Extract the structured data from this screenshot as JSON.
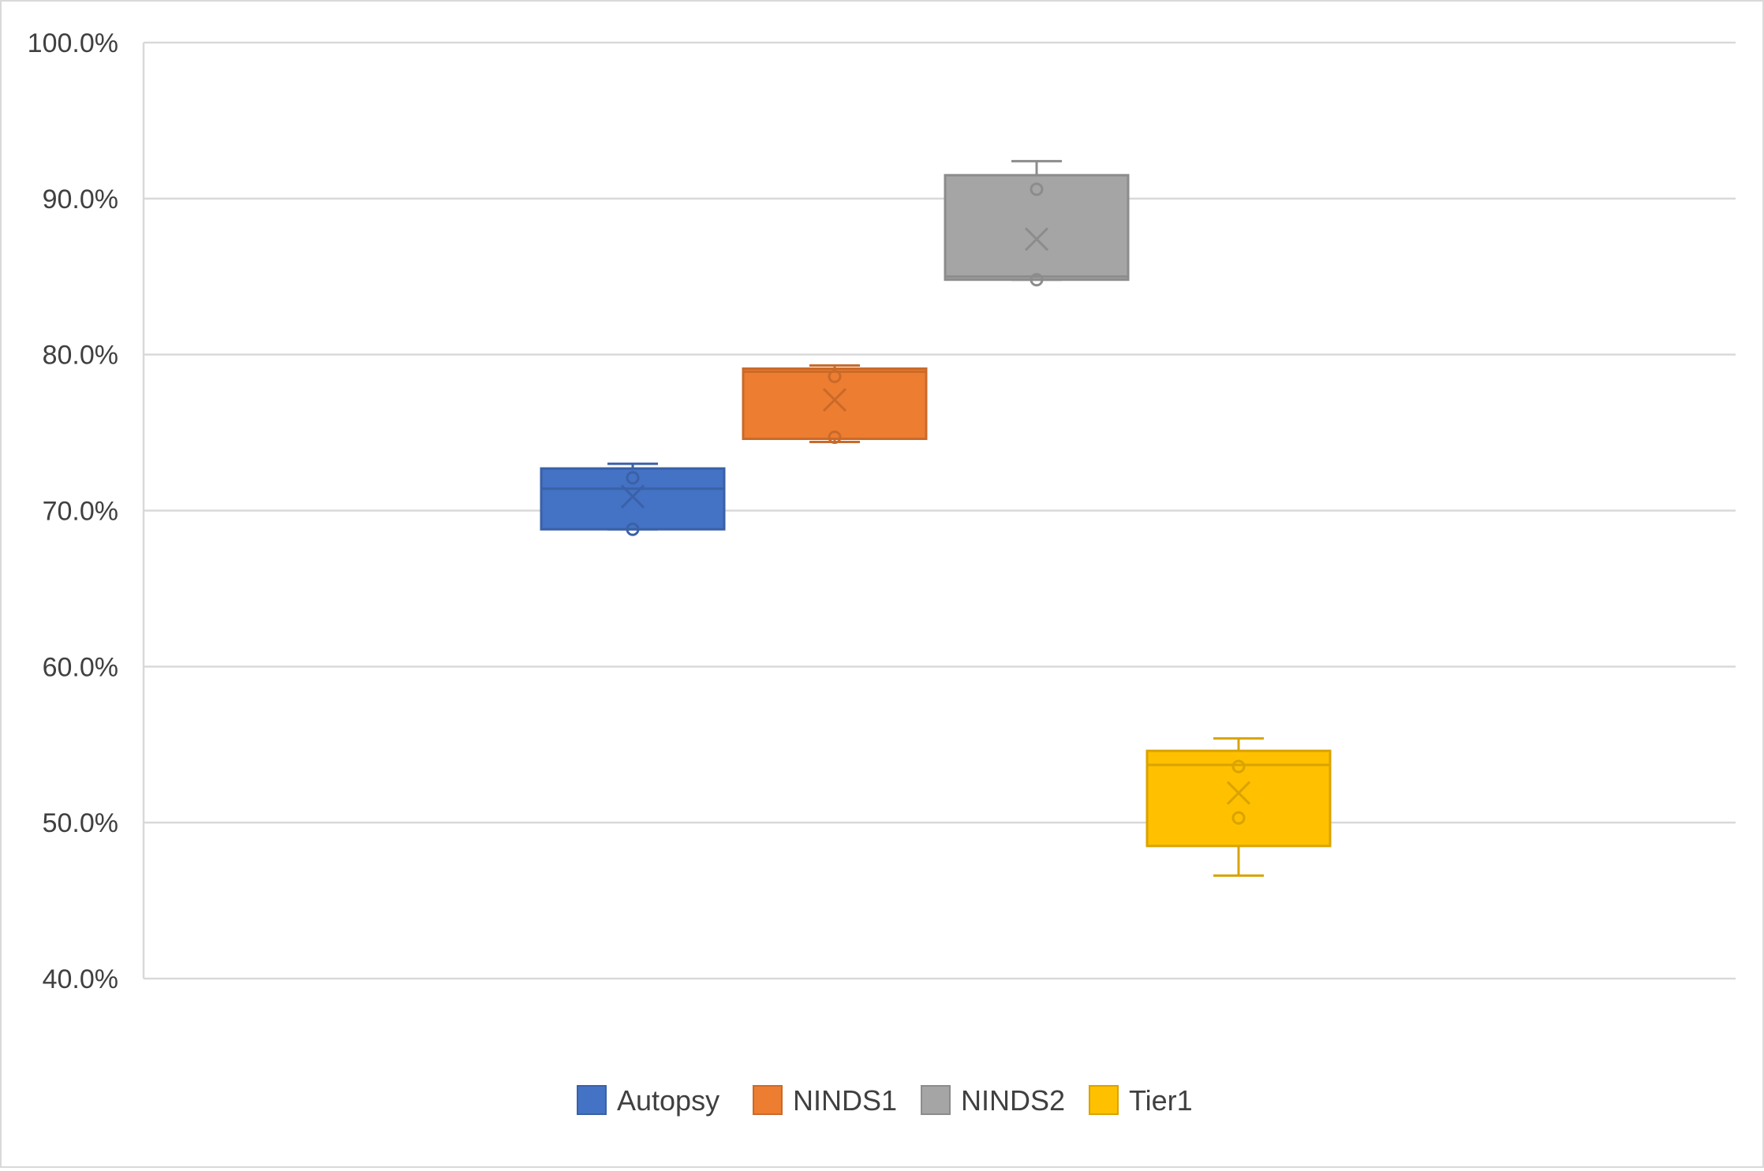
{
  "chart_data": {
    "type": "box",
    "title": "",
    "xlabel": "",
    "ylabel": "",
    "ylim": [
      0.4,
      1.0
    ],
    "y_ticks": [
      "40.0%",
      "50.0%",
      "60.0%",
      "70.0%",
      "80.0%",
      "90.0%",
      "100.0%"
    ],
    "y_tick_values": [
      0.4,
      0.5,
      0.6,
      0.7,
      0.8,
      0.9,
      1.0
    ],
    "grid": true,
    "legend_position": "bottom",
    "series": [
      {
        "name": "Autopsy",
        "color": "#4472c4",
        "min": 0.688,
        "q1": 0.688,
        "median": 0.714,
        "q3": 0.727,
        "max": 0.73,
        "mean": 0.709,
        "points": [
          0.688,
          0.721
        ]
      },
      {
        "name": "NINDS1",
        "color": "#ed7d31",
        "min": 0.744,
        "q1": 0.746,
        "median": 0.789,
        "q3": 0.791,
        "max": 0.793,
        "mean": 0.771,
        "points": [
          0.747,
          0.786
        ]
      },
      {
        "name": "NINDS2",
        "color": "#a5a5a5",
        "min": 0.848,
        "q1": 0.848,
        "median": 0.85,
        "q3": 0.915,
        "max": 0.924,
        "mean": 0.874,
        "points": [
          0.848,
          0.906
        ]
      },
      {
        "name": "Tier1",
        "color": "#ffc000",
        "min": 0.466,
        "q1": 0.485,
        "median": 0.537,
        "q3": 0.546,
        "max": 0.554,
        "mean": 0.519,
        "points": [
          0.503,
          0.536
        ]
      }
    ]
  }
}
